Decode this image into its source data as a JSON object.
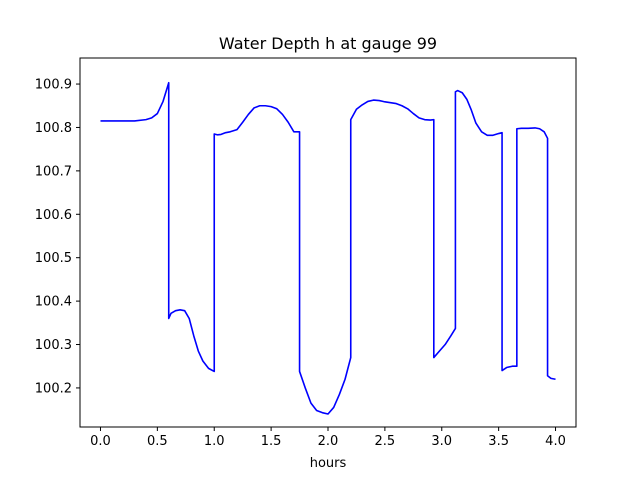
{
  "chart_data": {
    "type": "line",
    "title": "Water Depth h at gauge 99",
    "xlabel": "hours",
    "ylabel": "",
    "xlim": [
      -0.18,
      4.18
    ],
    "ylim": [
      100.11,
      100.96
    ],
    "xticks": [
      0.0,
      0.5,
      1.0,
      1.5,
      2.0,
      2.5,
      3.0,
      3.5,
      4.0
    ],
    "xtick_labels": [
      "0.0",
      "0.5",
      "1.0",
      "1.5",
      "2.0",
      "2.5",
      "3.0",
      "3.5",
      "4.0"
    ],
    "yticks": [
      100.2,
      100.3,
      100.4,
      100.5,
      100.6,
      100.7,
      100.8,
      100.9
    ],
    "ytick_labels": [
      "100.2",
      "100.3",
      "100.4",
      "100.5",
      "100.6",
      "100.7",
      "100.8",
      "100.9"
    ],
    "grid": false,
    "series": [
      {
        "color": "#0000ff",
        "x": [
          0.0,
          0.1,
          0.2,
          0.3,
          0.4,
          0.45,
          0.5,
          0.55,
          0.6,
          0.6,
          0.62,
          0.66,
          0.7,
          0.74,
          0.78,
          0.82,
          0.86,
          0.9,
          0.95,
          1.0,
          1.0,
          1.03,
          1.06,
          1.1,
          1.14,
          1.2,
          1.25,
          1.3,
          1.35,
          1.4,
          1.45,
          1.5,
          1.55,
          1.6,
          1.65,
          1.7,
          1.75,
          1.75,
          1.8,
          1.85,
          1.9,
          1.95,
          2.0,
          2.05,
          2.1,
          2.15,
          2.2,
          2.2,
          2.25,
          2.3,
          2.35,
          2.4,
          2.45,
          2.5,
          2.55,
          2.6,
          2.65,
          2.7,
          2.75,
          2.8,
          2.85,
          2.9,
          2.93,
          2.93,
          2.98,
          3.03,
          3.08,
          3.12,
          3.12,
          3.14,
          3.18,
          3.22,
          3.26,
          3.3,
          3.35,
          3.4,
          3.45,
          3.5,
          3.53,
          3.53,
          3.57,
          3.62,
          3.66,
          3.66,
          3.7,
          3.76,
          3.82,
          3.86,
          3.9,
          3.93,
          3.93,
          3.96,
          4.0
        ],
        "y": [
          100.815,
          100.815,
          100.815,
          100.815,
          100.818,
          100.822,
          100.832,
          100.86,
          100.903,
          100.36,
          100.372,
          100.378,
          100.38,
          100.378,
          100.36,
          100.32,
          100.285,
          100.262,
          100.245,
          100.238,
          100.785,
          100.783,
          100.784,
          100.788,
          100.79,
          100.795,
          100.812,
          100.83,
          100.845,
          100.85,
          100.85,
          100.848,
          100.843,
          100.83,
          100.812,
          100.79,
          100.79,
          100.238,
          100.2,
          100.165,
          100.148,
          100.143,
          100.14,
          100.155,
          100.185,
          100.22,
          100.27,
          100.818,
          100.842,
          100.852,
          100.86,
          100.863,
          100.862,
          100.859,
          100.857,
          100.855,
          100.85,
          100.843,
          100.832,
          100.822,
          100.818,
          100.817,
          100.818,
          100.27,
          100.285,
          100.3,
          100.32,
          100.337,
          100.882,
          100.885,
          100.88,
          100.865,
          100.84,
          100.81,
          100.79,
          100.782,
          100.782,
          100.786,
          100.788,
          100.24,
          100.247,
          100.25,
          100.25,
          100.797,
          100.798,
          100.798,
          100.799,
          100.797,
          100.79,
          100.775,
          100.228,
          100.222,
          100.22
        ]
      }
    ]
  }
}
